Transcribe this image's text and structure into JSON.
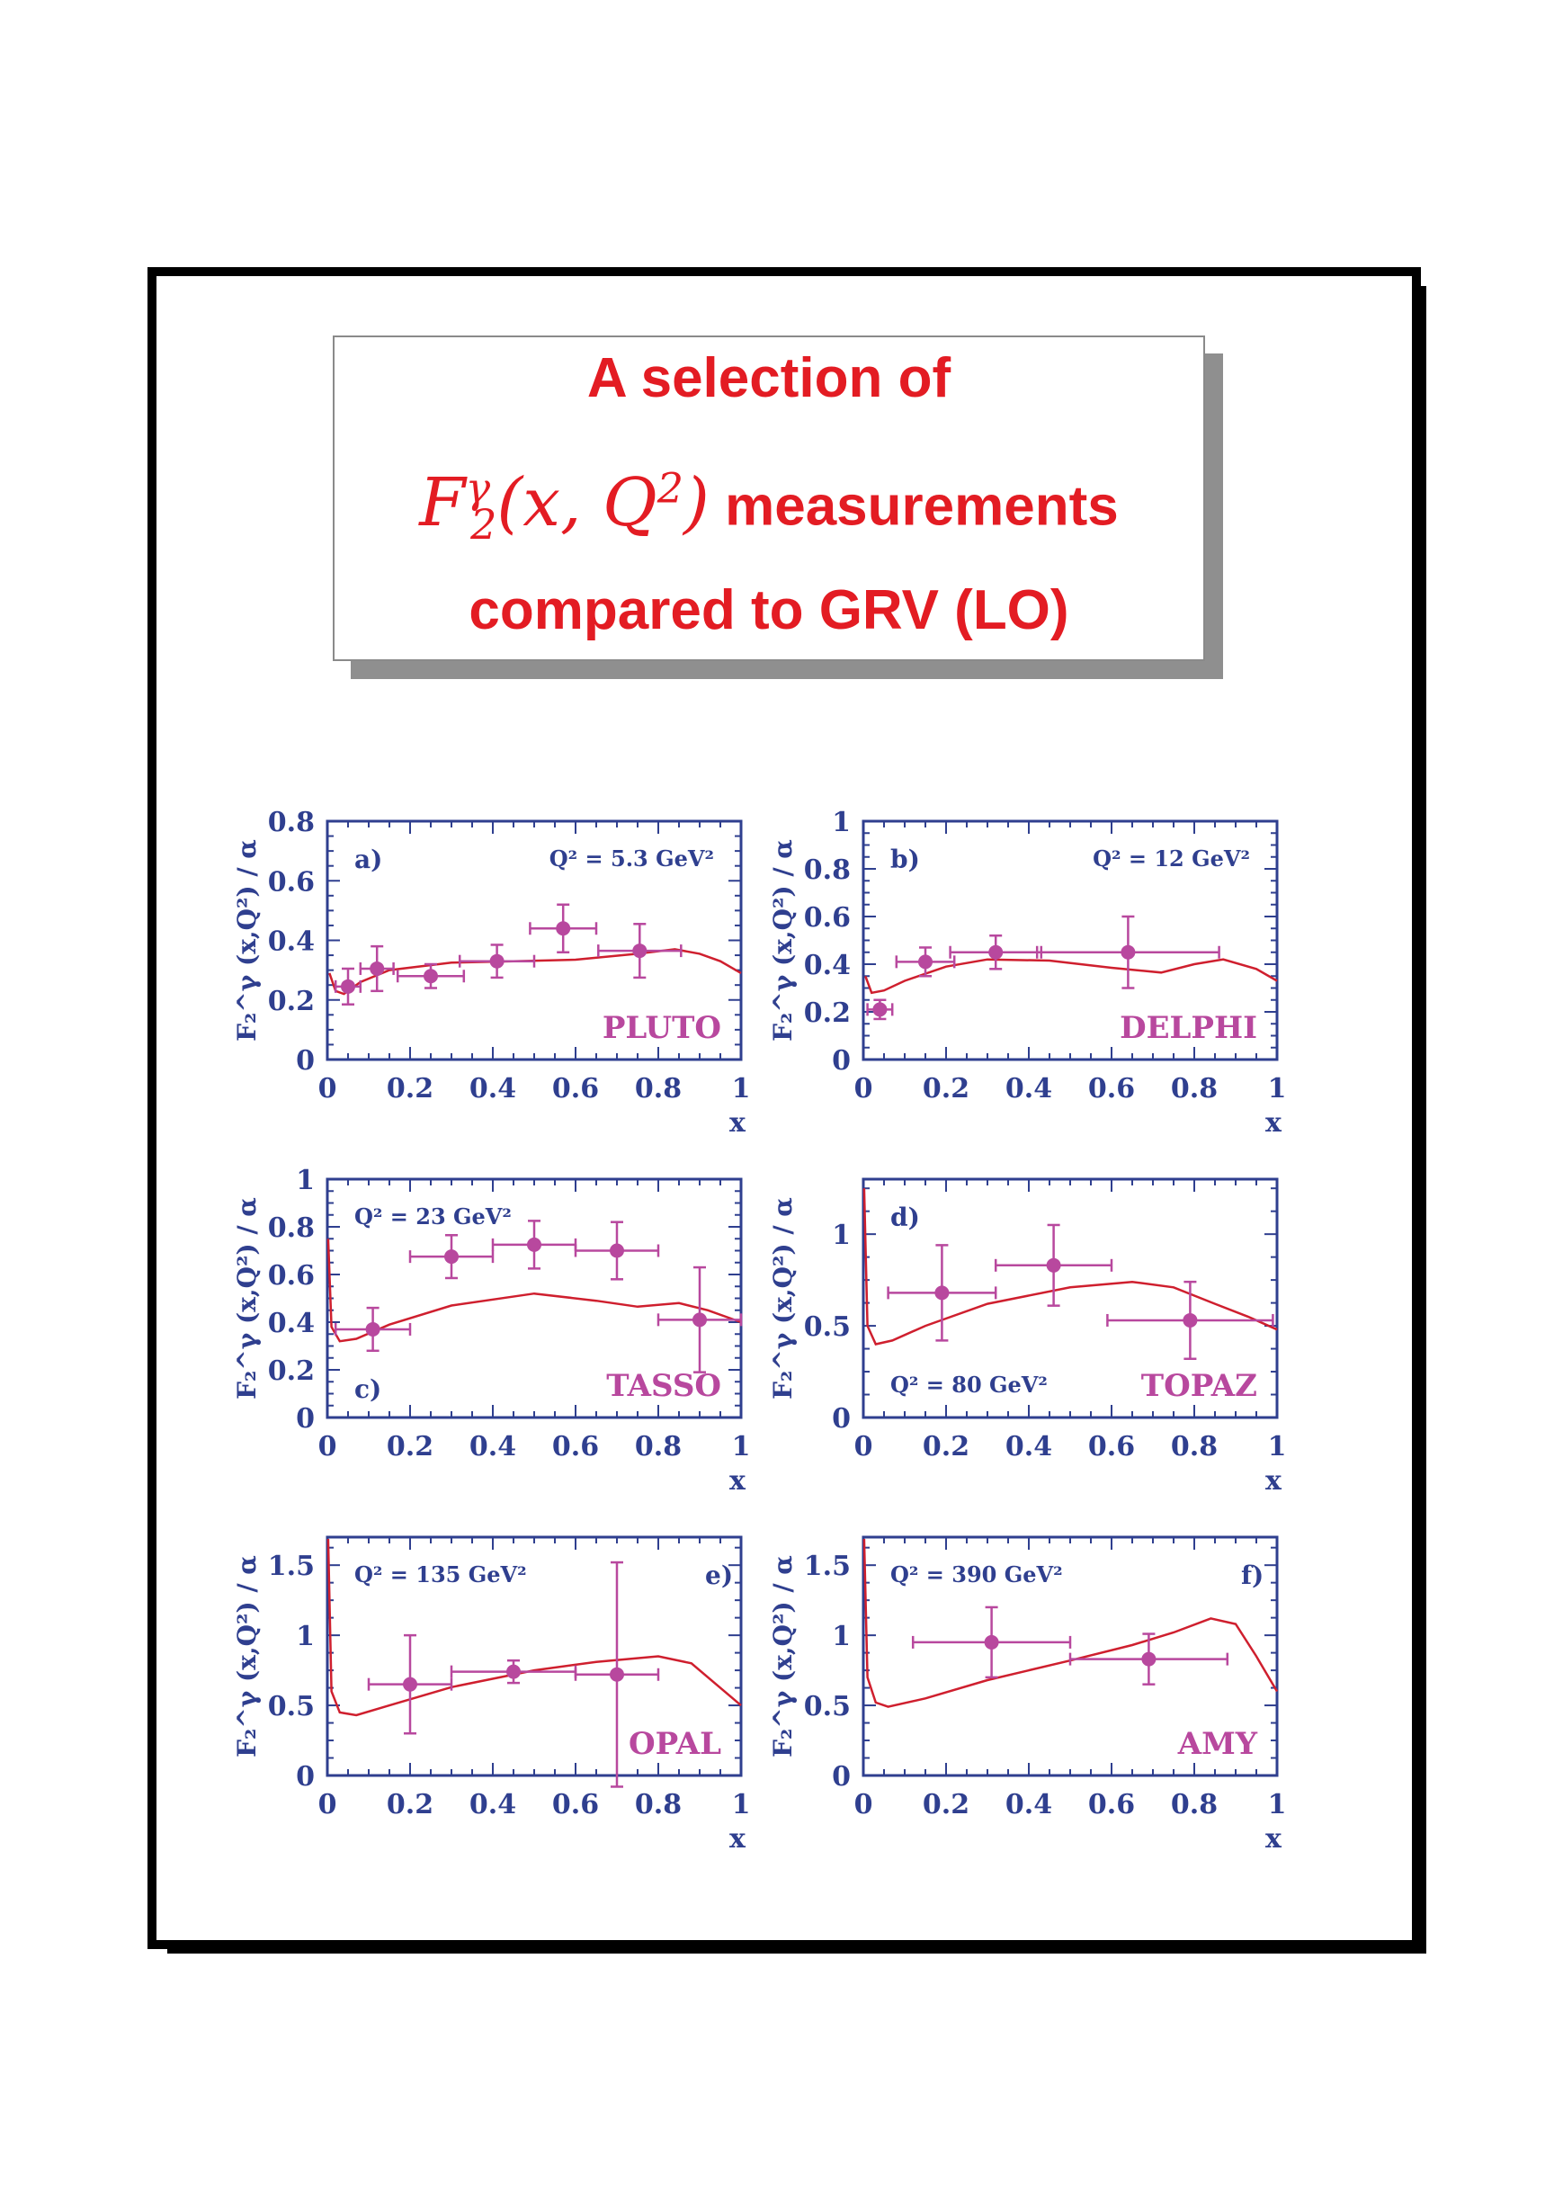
{
  "title": {
    "line1": "A selection of",
    "math_F": "F",
    "math_sup": "γ",
    "math_sub": "2",
    "math_args": "(x, Q",
    "math_q2": "2",
    "math_close": ")",
    "line2_rest": " measurements",
    "line3": "compared to GRV (LO)"
  },
  "colors": {
    "axis": "#2f3f8f",
    "data": "#b8489e",
    "curve": "#cf1f2e",
    "title": "#e31c23"
  },
  "chart_data": [
    {
      "type": "scatter",
      "panel": "a)",
      "experiment": "PLUTO",
      "q2_label": "Q² = 5.3 GeV²",
      "xlabel": "x",
      "ylabel": "F₂^γ (x,Q²) / α",
      "xlim": [
        0,
        1
      ],
      "ylim": [
        0,
        0.8
      ],
      "xticks": [
        "0",
        "0.2",
        "0.4",
        "0.6",
        "0.8",
        "1"
      ],
      "yticks": [
        "0",
        "0.2",
        "0.4",
        "0.6",
        "0.8"
      ],
      "points": [
        {
          "x": 0.05,
          "y": 0.245,
          "xerr": 0.03,
          "yerr": 0.06
        },
        {
          "x": 0.12,
          "y": 0.305,
          "xerr": 0.04,
          "yerr": 0.075
        },
        {
          "x": 0.25,
          "y": 0.28,
          "xerr": 0.08,
          "yerr": 0.04
        },
        {
          "x": 0.41,
          "y": 0.33,
          "xerr": 0.09,
          "yerr": 0.055
        },
        {
          "x": 0.57,
          "y": 0.44,
          "xerr": 0.08,
          "yerr": 0.08
        },
        {
          "x": 0.755,
          "y": 0.365,
          "xerr": 0.1,
          "yerr": 0.09
        }
      ],
      "curve": [
        [
          0.005,
          0.29
        ],
        [
          0.02,
          0.23
        ],
        [
          0.04,
          0.22
        ],
        [
          0.08,
          0.26
        ],
        [
          0.15,
          0.3
        ],
        [
          0.3,
          0.325
        ],
        [
          0.45,
          0.33
        ],
        [
          0.6,
          0.335
        ],
        [
          0.75,
          0.355
        ],
        [
          0.84,
          0.37
        ],
        [
          0.9,
          0.355
        ],
        [
          0.95,
          0.33
        ],
        [
          1.0,
          0.29
        ]
      ]
    },
    {
      "type": "scatter",
      "panel": "b)",
      "experiment": "DELPHI",
      "q2_label": "Q² = 12 GeV²",
      "xlabel": "x",
      "ylabel": "F₂^γ (x,Q²) / α",
      "xlim": [
        0,
        1
      ],
      "ylim": [
        0,
        1
      ],
      "xticks": [
        "0",
        "0.2",
        "0.4",
        "0.6",
        "0.8",
        "1"
      ],
      "yticks": [
        "0",
        "0.2",
        "0.4",
        "0.6",
        "0.8",
        "1"
      ],
      "points": [
        {
          "x": 0.04,
          "y": 0.21,
          "xerr": 0.03,
          "yerr": 0.04
        },
        {
          "x": 0.15,
          "y": 0.41,
          "xerr": 0.07,
          "yerr": 0.06
        },
        {
          "x": 0.32,
          "y": 0.45,
          "xerr": 0.11,
          "yerr": 0.07
        },
        {
          "x": 0.64,
          "y": 0.45,
          "xerr": 0.22,
          "yerr": 0.15
        }
      ],
      "curve": [
        [
          0.005,
          0.35
        ],
        [
          0.02,
          0.28
        ],
        [
          0.05,
          0.29
        ],
        [
          0.1,
          0.33
        ],
        [
          0.2,
          0.39
        ],
        [
          0.3,
          0.42
        ],
        [
          0.45,
          0.415
        ],
        [
          0.6,
          0.385
        ],
        [
          0.72,
          0.365
        ],
        [
          0.8,
          0.4
        ],
        [
          0.87,
          0.42
        ],
        [
          0.95,
          0.38
        ],
        [
          1.0,
          0.33
        ]
      ]
    },
    {
      "type": "scatter",
      "panel": "c)",
      "experiment": "TASSO",
      "q2_label": "Q² = 23 GeV²",
      "xlabel": "x",
      "ylabel": "F₂^γ (x,Q²) / α",
      "xlim": [
        0,
        1
      ],
      "ylim": [
        0,
        1
      ],
      "xticks": [
        "0",
        "0.2",
        "0.4",
        "0.6",
        "0.8",
        "1"
      ],
      "yticks": [
        "0",
        "0.2",
        "0.4",
        "0.6",
        "0.8",
        "1"
      ],
      "points": [
        {
          "x": 0.11,
          "y": 0.37,
          "xerr": 0.09,
          "yerr": 0.09
        },
        {
          "x": 0.3,
          "y": 0.675,
          "xerr": 0.1,
          "yerr": 0.09
        },
        {
          "x": 0.5,
          "y": 0.725,
          "xerr": 0.1,
          "yerr": 0.1
        },
        {
          "x": 0.7,
          "y": 0.7,
          "xerr": 0.1,
          "yerr": 0.12
        },
        {
          "x": 0.9,
          "y": 0.41,
          "xerr": 0.1,
          "yerr": 0.22
        }
      ],
      "curve": [
        [
          0.002,
          0.75
        ],
        [
          0.01,
          0.38
        ],
        [
          0.03,
          0.32
        ],
        [
          0.07,
          0.33
        ],
        [
          0.15,
          0.39
        ],
        [
          0.3,
          0.47
        ],
        [
          0.5,
          0.52
        ],
        [
          0.65,
          0.49
        ],
        [
          0.75,
          0.465
        ],
        [
          0.85,
          0.48
        ],
        [
          0.92,
          0.45
        ],
        [
          1.0,
          0.4
        ]
      ]
    },
    {
      "type": "scatter",
      "panel": "d)",
      "experiment": "TOPAZ",
      "q2_label": "Q² = 80 GeV²",
      "xlabel": "x",
      "ylabel": "F₂^γ (x,Q²) / α",
      "xlim": [
        0,
        1
      ],
      "ylim": [
        0,
        1.3
      ],
      "xticks": [
        "0",
        "0.2",
        "0.4",
        "0.6",
        "0.8",
        "1"
      ],
      "yticks": [
        "0",
        "0.5",
        "1"
      ],
      "points": [
        {
          "x": 0.19,
          "y": 0.68,
          "xerr": 0.13,
          "yerr": 0.26
        },
        {
          "x": 0.46,
          "y": 0.83,
          "xerr": 0.14,
          "yerr": 0.22
        },
        {
          "x": 0.79,
          "y": 0.53,
          "xerr": 0.2,
          "yerr": 0.21
        }
      ],
      "curve": [
        [
          0.002,
          1.25
        ],
        [
          0.01,
          0.5
        ],
        [
          0.03,
          0.4
        ],
        [
          0.07,
          0.42
        ],
        [
          0.15,
          0.5
        ],
        [
          0.3,
          0.62
        ],
        [
          0.5,
          0.71
        ],
        [
          0.65,
          0.74
        ],
        [
          0.75,
          0.71
        ],
        [
          0.85,
          0.62
        ],
        [
          0.93,
          0.55
        ],
        [
          1.0,
          0.48
        ]
      ]
    },
    {
      "type": "scatter",
      "panel": "e)",
      "experiment": "OPAL",
      "q2_label": "Q² = 135 GeV²",
      "xlabel": "x",
      "ylabel": "F₂^γ (x,Q²) / α",
      "xlim": [
        0,
        1
      ],
      "ylim": [
        0,
        1.7
      ],
      "xticks": [
        "0",
        "0.2",
        "0.4",
        "0.6",
        "0.8",
        "1"
      ],
      "yticks": [
        "0",
        "0.5",
        "1",
        "1.5"
      ],
      "points": [
        {
          "x": 0.2,
          "y": 0.65,
          "xerr": 0.1,
          "yerr": 0.35
        },
        {
          "x": 0.45,
          "y": 0.74,
          "xerr": 0.15,
          "yerr": 0.08
        },
        {
          "x": 0.7,
          "y": 0.72,
          "xerr": 0.1,
          "yerr": 0.8
        }
      ],
      "curve": [
        [
          0.002,
          1.7
        ],
        [
          0.01,
          0.6
        ],
        [
          0.03,
          0.45
        ],
        [
          0.07,
          0.43
        ],
        [
          0.15,
          0.5
        ],
        [
          0.3,
          0.63
        ],
        [
          0.5,
          0.75
        ],
        [
          0.65,
          0.81
        ],
        [
          0.8,
          0.85
        ],
        [
          0.88,
          0.8
        ],
        [
          0.94,
          0.65
        ],
        [
          1.0,
          0.5
        ]
      ]
    },
    {
      "type": "scatter",
      "panel": "f)",
      "experiment": "AMY",
      "q2_label": "Q² = 390 GeV²",
      "xlabel": "x",
      "ylabel": "F₂^γ (x,Q²) / α",
      "xlim": [
        0,
        1
      ],
      "ylim": [
        0,
        1.7
      ],
      "xticks": [
        "0",
        "0.2",
        "0.4",
        "0.6",
        "0.8",
        "1"
      ],
      "yticks": [
        "0",
        "0.5",
        "1",
        "1.5"
      ],
      "points": [
        {
          "x": 0.31,
          "y": 0.95,
          "xerr": 0.19,
          "yerr": 0.25
        },
        {
          "x": 0.69,
          "y": 0.83,
          "xerr": 0.19,
          "yerr": 0.18
        }
      ],
      "curve": [
        [
          0.002,
          1.7
        ],
        [
          0.01,
          0.7
        ],
        [
          0.03,
          0.52
        ],
        [
          0.06,
          0.49
        ],
        [
          0.15,
          0.55
        ],
        [
          0.3,
          0.68
        ],
        [
          0.5,
          0.82
        ],
        [
          0.65,
          0.93
        ],
        [
          0.75,
          1.02
        ],
        [
          0.84,
          1.12
        ],
        [
          0.9,
          1.08
        ],
        [
          0.95,
          0.85
        ],
        [
          1.0,
          0.6
        ]
      ]
    }
  ]
}
